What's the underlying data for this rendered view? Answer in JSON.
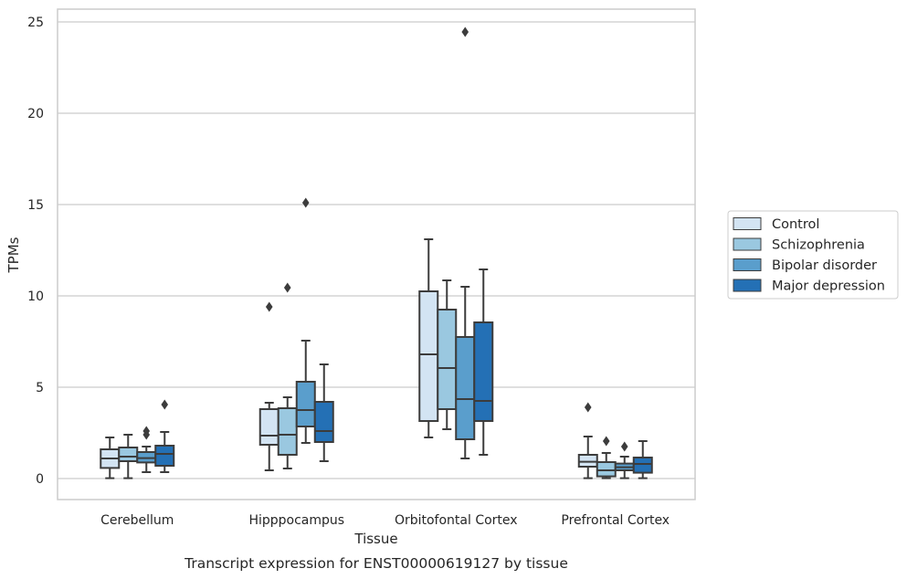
{
  "chart_data": {
    "type": "box",
    "title": "",
    "caption": "Transcript expression for ENST00000619127 by tissue",
    "xlabel": "Tissue",
    "ylabel": "TPMs",
    "ylim": [
      -1.15,
      25.7
    ],
    "yticks": [
      0,
      5,
      10,
      15,
      20,
      25
    ],
    "grid": "horizontal",
    "legend_position": "right",
    "categories": [
      "Cerebellum",
      "Hipppocampus",
      "Orbitofontal Cortex",
      "Prefrontal Cortex"
    ],
    "series": [
      {
        "name": "Control",
        "color": "#d3e4f3",
        "boxes": [
          {
            "whislo": 0.02,
            "q1": 0.58,
            "med": 1.1,
            "q3": 1.6,
            "whishi": 2.25,
            "fliers": []
          },
          {
            "whislo": 0.45,
            "q1": 1.85,
            "med": 2.35,
            "q3": 3.8,
            "whishi": 4.15,
            "fliers": [
              9.4
            ]
          },
          {
            "whislo": 2.25,
            "q1": 3.15,
            "med": 6.8,
            "q3": 10.25,
            "whishi": 13.1,
            "fliers": []
          },
          {
            "whislo": 0.02,
            "q1": 0.65,
            "med": 0.92,
            "q3": 1.3,
            "whishi": 2.3,
            "fliers": [
              3.9
            ]
          }
        ]
      },
      {
        "name": "Schizophrenia",
        "color": "#9ac8e0",
        "boxes": [
          {
            "whislo": 0.02,
            "q1": 0.95,
            "med": 1.2,
            "q3": 1.7,
            "whishi": 2.4,
            "fliers": []
          },
          {
            "whislo": 0.55,
            "q1": 1.3,
            "med": 2.4,
            "q3": 3.85,
            "whishi": 4.45,
            "fliers": [
              10.45
            ]
          },
          {
            "whislo": 2.7,
            "q1": 3.8,
            "med": 6.05,
            "q3": 9.25,
            "whishi": 10.85,
            "fliers": []
          },
          {
            "whislo": 0.02,
            "q1": 0.12,
            "med": 0.45,
            "q3": 0.9,
            "whishi": 1.4,
            "fliers": [
              2.05
            ]
          }
        ]
      },
      {
        "name": "Bipolar disorder",
        "color": "#5a9ecc",
        "boxes": [
          {
            "whislo": 0.35,
            "q1": 0.88,
            "med": 1.12,
            "q3": 1.45,
            "whishi": 1.75,
            "fliers": [
              2.4,
              2.6
            ]
          },
          {
            "whislo": 1.95,
            "q1": 2.85,
            "med": 3.75,
            "q3": 5.3,
            "whishi": 7.55,
            "fliers": [
              15.1
            ]
          },
          {
            "whislo": 1.1,
            "q1": 2.15,
            "med": 4.35,
            "q3": 7.75,
            "whishi": 10.5,
            "fliers": [
              24.45
            ]
          },
          {
            "whislo": 0.02,
            "q1": 0.45,
            "med": 0.62,
            "q3": 0.82,
            "whishi": 1.2,
            "fliers": [
              1.75
            ]
          }
        ]
      },
      {
        "name": "Major depression",
        "color": "#2470b5",
        "boxes": [
          {
            "whislo": 0.35,
            "q1": 0.7,
            "med": 1.35,
            "q3": 1.8,
            "whishi": 2.55,
            "fliers": [
              4.05
            ]
          },
          {
            "whislo": 0.95,
            "q1": 2.0,
            "med": 2.6,
            "q3": 4.2,
            "whishi": 6.25,
            "fliers": []
          },
          {
            "whislo": 1.3,
            "q1": 3.15,
            "med": 4.25,
            "q3": 8.55,
            "whishi": 11.45,
            "fliers": []
          },
          {
            "whislo": 0.02,
            "q1": 0.32,
            "med": 0.8,
            "q3": 1.15,
            "whishi": 2.05,
            "fliers": []
          }
        ]
      }
    ]
  }
}
